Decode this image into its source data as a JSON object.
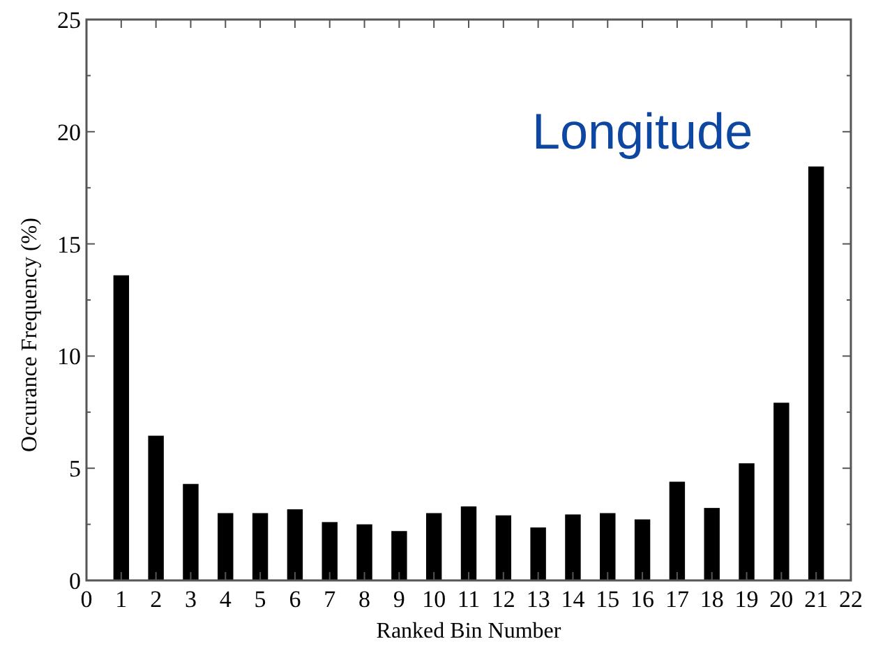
{
  "chart_data": {
    "type": "bar",
    "title": "Longitude",
    "xlabel": "Ranked Bin Number",
    "ylabel": "Occurance Frequency (%)",
    "x": [
      1,
      2,
      3,
      4,
      5,
      6,
      7,
      8,
      9,
      10,
      11,
      12,
      13,
      14,
      15,
      16,
      17,
      18,
      19,
      20,
      21
    ],
    "values": [
      13.6,
      6.45,
      4.3,
      3.0,
      3.0,
      3.17,
      2.6,
      2.5,
      2.2,
      3.0,
      3.3,
      2.9,
      2.36,
      2.94,
      3.0,
      2.72,
      4.4,
      3.23,
      5.22,
      7.92,
      18.45
    ],
    "color": "#000000",
    "xlim": [
      0,
      22
    ],
    "xticks": [
      0,
      1,
      2,
      3,
      4,
      5,
      6,
      7,
      8,
      9,
      10,
      11,
      12,
      13,
      14,
      15,
      16,
      17,
      18,
      19,
      20,
      21,
      22
    ],
    "ylim": [
      0,
      25
    ],
    "yticks": [
      0,
      {
        "value": 2.5,
        "label": null
      },
      5,
      {
        "value": 7.5,
        "label": null
      },
      10,
      {
        "value": 12.5,
        "label": null
      },
      15,
      {
        "value": 17.5,
        "label": null
      },
      20,
      {
        "value": 22.5,
        "label": null
      },
      25
    ],
    "grid": false
  }
}
